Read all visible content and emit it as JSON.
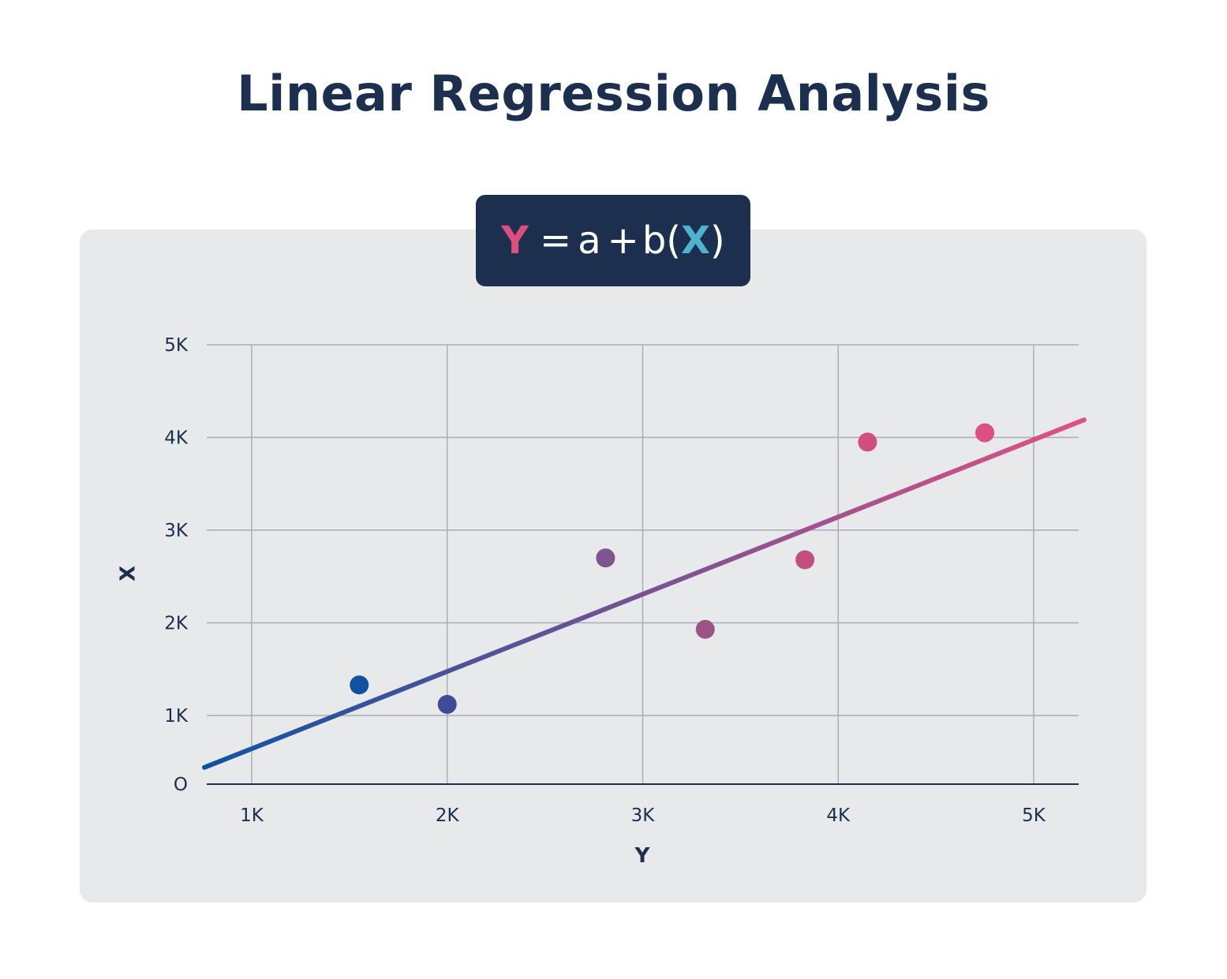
{
  "title": "Linear Regression Analysis",
  "formula": {
    "y": "Y",
    "equals": "=",
    "a": "a",
    "plus": "+",
    "b_open": "b(",
    "x": "X",
    "close": ")"
  },
  "colors": {
    "title": "#1c2f4f",
    "panel": "#e8e9ea",
    "formula_bg": "#1c2f4f",
    "y_symbol": "#de4f80",
    "x_symbol": "#4fb3cf",
    "grid": "#a9aeb8",
    "line_start": "#0f53a1",
    "line_end": "#df5185"
  },
  "chart_data": {
    "type": "scatter",
    "xlabel": "Y",
    "ylabel": "X",
    "xlim": [
      0.77,
      5.23
    ],
    "ylim": [
      0,
      4.75
    ],
    "x_ticks": [
      {
        "value": 1,
        "label": "1K"
      },
      {
        "value": 2,
        "label": "2K"
      },
      {
        "value": 3,
        "label": "3K"
      },
      {
        "value": 4,
        "label": "4K"
      },
      {
        "value": 5,
        "label": "5K"
      }
    ],
    "y_ticks": [
      {
        "value": 0,
        "label": "O"
      },
      {
        "value": 1,
        "label": "1K"
      },
      {
        "value": 2,
        "label": "2K"
      },
      {
        "value": 3,
        "label": "3K"
      },
      {
        "value": 4,
        "label": "4K"
      },
      {
        "value": 5,
        "label": "5K"
      }
    ],
    "grid": true,
    "points": [
      {
        "x": 1.55,
        "y": 1.33,
        "color": "#11529f"
      },
      {
        "x": 2.0,
        "y": 1.12,
        "color": "#3c4d96"
      },
      {
        "x": 2.81,
        "y": 2.7,
        "color": "#7f558f"
      },
      {
        "x": 3.32,
        "y": 1.93,
        "color": "#9b5388"
      },
      {
        "x": 3.83,
        "y": 2.68,
        "color": "#c14f7f"
      },
      {
        "x": 4.15,
        "y": 3.95,
        "color": "#d04f80"
      },
      {
        "x": 4.75,
        "y": 4.05,
        "color": "#dc4f80"
      }
    ],
    "regression_line": {
      "x": [
        0.77,
        5.25
      ],
      "y": [
        0.44,
        4.19
      ]
    }
  }
}
